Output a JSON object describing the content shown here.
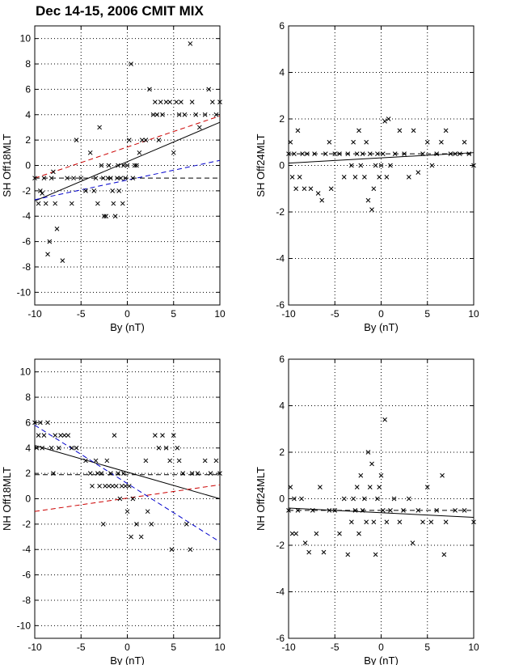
{
  "title": "Dec 14-15, 2006 CMIT MIX",
  "colors": {
    "black": "#000000",
    "red": "#cc0000",
    "blue": "#0000cc",
    "grid": "#000000"
  },
  "chart_data": [
    {
      "type": "scatter",
      "id": "sh18",
      "xlabel": "By (nT)",
      "ylabel": "SH Off18MLT",
      "xlim": [
        -10,
        10
      ],
      "ylim": [
        -11,
        11
      ],
      "xticks": [
        -10,
        -5,
        0,
        5,
        10
      ],
      "yticks": [
        -10,
        -8,
        -6,
        -4,
        -2,
        0,
        2,
        4,
        6,
        8,
        10
      ],
      "grid": true,
      "lines": [
        {
          "name": "fit",
          "color": "#000000",
          "style": "solid",
          "x": [
            -10,
            10
          ],
          "y": [
            -2.8,
            3.4
          ]
        },
        {
          "name": "fit-red",
          "color": "#cc0000",
          "style": "dashed",
          "x": [
            -10,
            10
          ],
          "y": [
            -1.0,
            3.9
          ]
        },
        {
          "name": "fit-blue",
          "color": "#0000cc",
          "style": "dashed",
          "x": [
            -10,
            10
          ],
          "y": [
            -2.7,
            0.4
          ]
        },
        {
          "name": "reference",
          "color": "#000000",
          "style": "dashed",
          "x": [
            -10,
            10
          ],
          "y": [
            -1.0,
            -1.0
          ]
        }
      ],
      "points": [
        [
          -10,
          -1
        ],
        [
          -9.6,
          -3
        ],
        [
          -9.4,
          -2
        ],
        [
          -9.2,
          -2.2
        ],
        [
          -9,
          -1
        ],
        [
          -8.8,
          -3
        ],
        [
          -8.6,
          -7
        ],
        [
          -8.4,
          -6
        ],
        [
          -8.2,
          -1
        ],
        [
          -8,
          -0.5
        ],
        [
          -7.8,
          -3
        ],
        [
          -7.6,
          -5
        ],
        [
          -7,
          -7.5
        ],
        [
          -6.5,
          -1
        ],
        [
          -6,
          -3
        ],
        [
          -5.8,
          -1
        ],
        [
          -5.5,
          2
        ],
        [
          -5,
          -1
        ],
        [
          -4.5,
          -2
        ],
        [
          -4,
          1
        ],
        [
          -3.6,
          -2
        ],
        [
          -3.4,
          -1
        ],
        [
          -3.2,
          -3
        ],
        [
          -3,
          3
        ],
        [
          -2.8,
          0
        ],
        [
          -2.6,
          -1
        ],
        [
          -2.5,
          -4
        ],
        [
          -2.3,
          -4
        ],
        [
          -2.1,
          -1
        ],
        [
          -2,
          0
        ],
        [
          -1.8,
          -1
        ],
        [
          -1.6,
          -2
        ],
        [
          -1.5,
          -3
        ],
        [
          -1.3,
          -4
        ],
        [
          -1.1,
          -1
        ],
        [
          -1,
          0
        ],
        [
          -0.9,
          -2
        ],
        [
          -0.7,
          -1
        ],
        [
          -0.5,
          -3
        ],
        [
          -0.4,
          0
        ],
        [
          -0.2,
          -1
        ],
        [
          0,
          0
        ],
        [
          0.2,
          2
        ],
        [
          0.4,
          8
        ],
        [
          0.6,
          -1
        ],
        [
          0.8,
          0
        ],
        [
          1,
          0
        ],
        [
          1.3,
          1
        ],
        [
          1.6,
          2
        ],
        [
          2,
          2
        ],
        [
          2.4,
          6
        ],
        [
          2.8,
          4
        ],
        [
          3,
          5
        ],
        [
          3.2,
          4
        ],
        [
          3.4,
          2
        ],
        [
          3.6,
          5
        ],
        [
          3.8,
          4
        ],
        [
          4.2,
          5
        ],
        [
          4.6,
          5
        ],
        [
          5,
          1
        ],
        [
          5.3,
          5
        ],
        [
          5.6,
          4
        ],
        [
          5.8,
          5
        ],
        [
          6.2,
          4
        ],
        [
          6.8,
          9.6
        ],
        [
          7,
          5
        ],
        [
          7.4,
          4
        ],
        [
          7.8,
          3
        ],
        [
          8.4,
          4
        ],
        [
          8.8,
          6
        ],
        [
          9.2,
          5
        ],
        [
          9.6,
          4
        ],
        [
          10,
          5
        ]
      ]
    },
    {
      "type": "scatter",
      "id": "sh24",
      "xlabel": "By (nT)",
      "ylabel": "SH Off24MLT",
      "xlim": [
        -10,
        10
      ],
      "ylim": [
        -6,
        6
      ],
      "xticks": [
        -10,
        -5,
        0,
        5,
        10
      ],
      "yticks": [
        -6,
        -4,
        -2,
        0,
        2,
        4,
        6
      ],
      "grid": true,
      "lines": [
        {
          "name": "fit",
          "color": "#000000",
          "style": "solid",
          "x": [
            -10,
            10
          ],
          "y": [
            0.1,
            0.55
          ]
        },
        {
          "name": "reference",
          "color": "#000000",
          "style": "dashed",
          "x": [
            -10,
            10
          ],
          "y": [
            0.5,
            0.5
          ]
        }
      ],
      "points": [
        [
          -10,
          0.5
        ],
        [
          -9.8,
          1
        ],
        [
          -9.6,
          -0.5
        ],
        [
          -9.4,
          0.5
        ],
        [
          -9.2,
          -1
        ],
        [
          -9,
          1.5
        ],
        [
          -8.8,
          -0.5
        ],
        [
          -8.5,
          0.5
        ],
        [
          -8.3,
          -1
        ],
        [
          -8,
          0.5
        ],
        [
          -7.6,
          -1
        ],
        [
          -7.2,
          0.5
        ],
        [
          -6.8,
          -1.2
        ],
        [
          -6.4,
          -1.5
        ],
        [
          -6,
          0.5
        ],
        [
          -5.6,
          1
        ],
        [
          -5.4,
          -1
        ],
        [
          -5,
          0.5
        ],
        [
          -4.5,
          0.5
        ],
        [
          -4,
          -0.5
        ],
        [
          -3.6,
          0.5
        ],
        [
          -3.2,
          0
        ],
        [
          -3,
          1
        ],
        [
          -2.8,
          -0.5
        ],
        [
          -2.6,
          0.5
        ],
        [
          -2.4,
          1.5
        ],
        [
          -2.2,
          0
        ],
        [
          -2,
          0.5
        ],
        [
          -1.8,
          -0.5
        ],
        [
          -1.6,
          1
        ],
        [
          -1.4,
          -1.5
        ],
        [
          -1.2,
          0.5
        ],
        [
          -1,
          -1.9
        ],
        [
          -0.8,
          -1
        ],
        [
          -0.6,
          0
        ],
        [
          -0.4,
          0.5
        ],
        [
          -0.2,
          -0.5
        ],
        [
          0,
          0
        ],
        [
          0.2,
          0.5
        ],
        [
          0.4,
          1.9
        ],
        [
          0.6,
          -0.5
        ],
        [
          0.8,
          2
        ],
        [
          1,
          0
        ],
        [
          1.5,
          0.5
        ],
        [
          2,
          1.5
        ],
        [
          2.5,
          0.5
        ],
        [
          3,
          -0.5
        ],
        [
          3.5,
          1.5
        ],
        [
          4,
          -0.3
        ],
        [
          4.5,
          0.5
        ],
        [
          5,
          1
        ],
        [
          5.5,
          0
        ],
        [
          6,
          0.5
        ],
        [
          6.5,
          1
        ],
        [
          7,
          1.5
        ],
        [
          7.5,
          0.5
        ],
        [
          8,
          0.5
        ],
        [
          8.5,
          0.5
        ],
        [
          9,
          1
        ],
        [
          9.5,
          0.5
        ],
        [
          10,
          0
        ]
      ]
    },
    {
      "type": "scatter",
      "id": "nh18",
      "xlabel": "By (nT)",
      "ylabel": "NH Off18MLT",
      "xlim": [
        -10,
        10
      ],
      "ylim": [
        -11,
        11
      ],
      "xticks": [
        -10,
        -5,
        0,
        5,
        10
      ],
      "yticks": [
        -10,
        -8,
        -6,
        -4,
        -2,
        0,
        2,
        4,
        6,
        8,
        10
      ],
      "grid": true,
      "lines": [
        {
          "name": "fit",
          "color": "#000000",
          "style": "solid",
          "x": [
            -10,
            10
          ],
          "y": [
            4.2,
            0.0
          ]
        },
        {
          "name": "fit-red",
          "color": "#cc0000",
          "style": "dashed",
          "x": [
            -10,
            10
          ],
          "y": [
            -1.0,
            1.1
          ]
        },
        {
          "name": "fit-blue",
          "color": "#0000cc",
          "style": "dashed",
          "x": [
            -10,
            10
          ],
          "y": [
            5.8,
            -3.4
          ]
        },
        {
          "name": "reference",
          "color": "#000000",
          "style": "dashed",
          "x": [
            -10,
            10
          ],
          "y": [
            1.9,
            1.9
          ]
        }
      ],
      "points": [
        [
          -10,
          6
        ],
        [
          -9.8,
          4
        ],
        [
          -9.6,
          5
        ],
        [
          -9.4,
          6
        ],
        [
          -9.2,
          4
        ],
        [
          -9,
          5
        ],
        [
          -8.6,
          6
        ],
        [
          -8.2,
          4
        ],
        [
          -8,
          2
        ],
        [
          -7.8,
          5
        ],
        [
          -7.4,
          4
        ],
        [
          -7.2,
          5
        ],
        [
          -6.8,
          5
        ],
        [
          -6.4,
          5
        ],
        [
          -6,
          4
        ],
        [
          -5.5,
          4
        ],
        [
          -4.5,
          3
        ],
        [
          -4,
          2
        ],
        [
          -3.8,
          1
        ],
        [
          -3.4,
          3
        ],
        [
          -3.2,
          2
        ],
        [
          -3,
          1
        ],
        [
          -2.8,
          2
        ],
        [
          -2.6,
          -2
        ],
        [
          -2.4,
          1
        ],
        [
          -2.2,
          3
        ],
        [
          -2,
          1
        ],
        [
          -1.8,
          2
        ],
        [
          -1.6,
          1
        ],
        [
          -1.4,
          5
        ],
        [
          -1.2,
          1
        ],
        [
          -1,
          2
        ],
        [
          -0.8,
          0
        ],
        [
          -0.6,
          1
        ],
        [
          -0.4,
          2
        ],
        [
          -0.2,
          1
        ],
        [
          0,
          -1
        ],
        [
          0.2,
          1
        ],
        [
          0.4,
          -3
        ],
        [
          0.6,
          0
        ],
        [
          1,
          -2
        ],
        [
          1.5,
          -3
        ],
        [
          2,
          3
        ],
        [
          2.2,
          -1
        ],
        [
          2.6,
          -2
        ],
        [
          3,
          5
        ],
        [
          3.4,
          4
        ],
        [
          3.8,
          5
        ],
        [
          4.2,
          4
        ],
        [
          4.6,
          3
        ],
        [
          4.8,
          -4
        ],
        [
          5,
          5
        ],
        [
          5.4,
          4
        ],
        [
          5.6,
          3
        ],
        [
          6,
          2
        ],
        [
          6.4,
          -2
        ],
        [
          6.8,
          -4
        ],
        [
          7,
          2
        ],
        [
          7.6,
          2
        ],
        [
          8.4,
          3
        ],
        [
          9,
          2
        ],
        [
          9.6,
          3
        ],
        [
          10,
          2
        ]
      ]
    },
    {
      "type": "scatter",
      "id": "nh24",
      "xlabel": "By (nT)",
      "ylabel": "NH Off24MLT",
      "xlim": [
        -10,
        10
      ],
      "ylim": [
        -6,
        6
      ],
      "xticks": [
        -10,
        -5,
        0,
        5,
        10
      ],
      "yticks": [
        -6,
        -4,
        -2,
        0,
        2,
        4,
        6
      ],
      "grid": true,
      "lines": [
        {
          "name": "fit",
          "color": "#000000",
          "style": "solid",
          "x": [
            -10,
            10
          ],
          "y": [
            -0.4,
            -0.8
          ]
        },
        {
          "name": "reference",
          "color": "#000000",
          "style": "dashed",
          "x": [
            -10,
            10
          ],
          "y": [
            -0.5,
            -0.5
          ]
        }
      ],
      "points": [
        [
          -10,
          -0.5
        ],
        [
          -9.8,
          0.5
        ],
        [
          -9.6,
          -1.5
        ],
        [
          -9.4,
          0
        ],
        [
          -9.2,
          -1.5
        ],
        [
          -9,
          -0.5
        ],
        [
          -8.6,
          0
        ],
        [
          -8.2,
          -1.9
        ],
        [
          -7.8,
          -2.3
        ],
        [
          -7.4,
          -0.5
        ],
        [
          -7,
          -1.5
        ],
        [
          -6.6,
          0.5
        ],
        [
          -6.2,
          -2.3
        ],
        [
          -5.6,
          -0.5
        ],
        [
          -5,
          -0.5
        ],
        [
          -4.5,
          -1.5
        ],
        [
          -4,
          0
        ],
        [
          -3.6,
          -2.4
        ],
        [
          -3.2,
          -1
        ],
        [
          -3,
          0
        ],
        [
          -2.8,
          -0.5
        ],
        [
          -2.6,
          0.5
        ],
        [
          -2.4,
          -1.5
        ],
        [
          -2.2,
          1
        ],
        [
          -2,
          -0.5
        ],
        [
          -1.8,
          0
        ],
        [
          -1.6,
          -1
        ],
        [
          -1.4,
          2
        ],
        [
          -1.2,
          0.5
        ],
        [
          -1,
          1.5
        ],
        [
          -0.8,
          -1
        ],
        [
          -0.6,
          -2.4
        ],
        [
          -0.4,
          0
        ],
        [
          -0.2,
          0.5
        ],
        [
          0,
          1
        ],
        [
          0.2,
          -0.5
        ],
        [
          0.4,
          3.4
        ],
        [
          0.6,
          -1
        ],
        [
          1,
          -0.5
        ],
        [
          1.4,
          0
        ],
        [
          2,
          -1
        ],
        [
          2.4,
          -0.5
        ],
        [
          3,
          0
        ],
        [
          3.4,
          -1.9
        ],
        [
          4,
          -0.5
        ],
        [
          4.5,
          -1
        ],
        [
          5,
          0.5
        ],
        [
          5.4,
          -1
        ],
        [
          6,
          -0.5
        ],
        [
          6.6,
          1
        ],
        [
          6.8,
          -2.4
        ],
        [
          7,
          -1
        ],
        [
          8,
          -0.5
        ],
        [
          9,
          -0.5
        ],
        [
          10,
          -1
        ]
      ]
    }
  ]
}
